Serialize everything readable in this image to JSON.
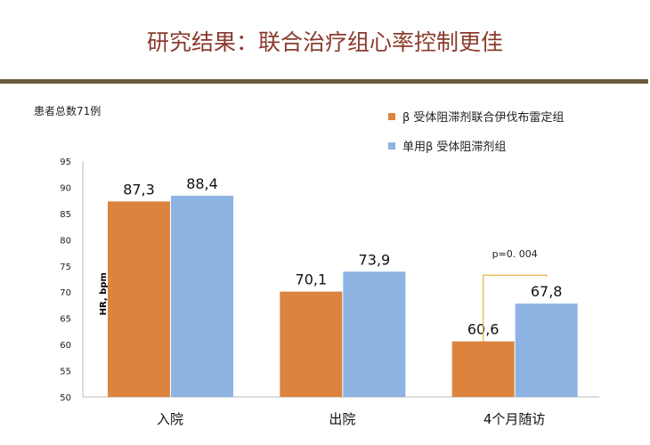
{
  "title": "研究结果：联合治疗组心率控制更佳",
  "note": "患者总数71例",
  "chart_data": {
    "type": "bar",
    "categories": [
      "入院",
      "出院",
      "4个月随访"
    ],
    "series": [
      {
        "name": "β 受体阻滞剂联合伊伐布雷定组",
        "values": [
          87.3,
          70.1,
          60.6
        ],
        "labels": [
          "87,3",
          "70,1",
          "60,6"
        ],
        "color": "#dc843e"
      },
      {
        "name": "单用β 受体阻滞剂组",
        "values": [
          88.4,
          73.9,
          67.8
        ],
        "labels": [
          "88,4",
          "73,9",
          "67,8"
        ],
        "color": "#8db3e2"
      }
    ],
    "ylabel": "HR, bpm",
    "ylim": [
      50,
      95
    ],
    "yticks": [
      50,
      55,
      60,
      65,
      70,
      75,
      80,
      85,
      90,
      95
    ],
    "grid": false,
    "legend_position": "top-right",
    "annotations": [
      {
        "text": "p=0. 004",
        "category": "4个月随访"
      }
    ]
  }
}
